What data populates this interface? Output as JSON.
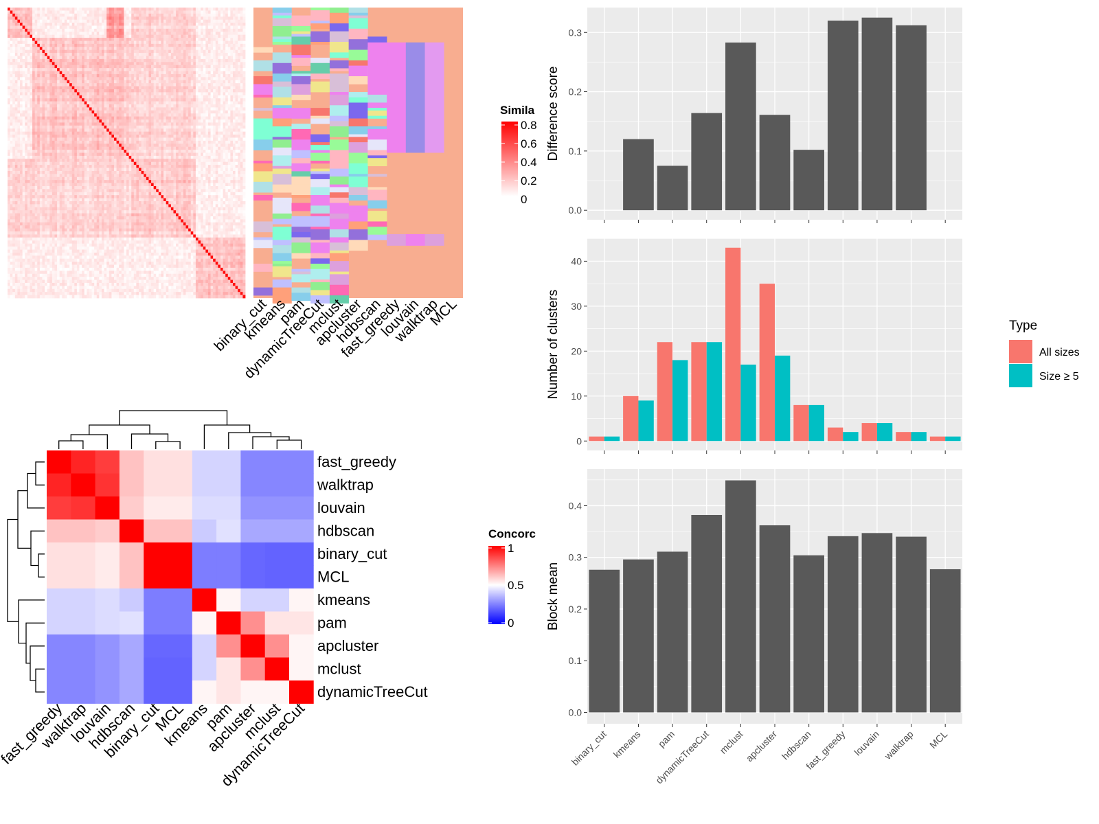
{
  "colors": {
    "panel_bg": "#ebebeb",
    "grid": "#ffffff",
    "bar_dark": "#595959",
    "all_sizes": "#f8766d",
    "size_ge5": "#00bfc4",
    "sim_high": "#ff0000",
    "conc_low": "#0000ff",
    "membership_bg": "#f8ad90"
  },
  "similarity_legend": {
    "title": "Simila",
    "ticks": [
      "0.8",
      "0.6",
      "0.4",
      "0.2",
      "0"
    ]
  },
  "concordance_legend": {
    "title": "Concorc",
    "ticks": [
      "1",
      "0.5",
      "0"
    ]
  },
  "membership_labels": [
    "binary_cut",
    "kmeans",
    "pam",
    "dynamicTreeCut",
    "mclust",
    "apcluster",
    "hdbscan",
    "fast_greedy",
    "louvain",
    "walktrap",
    "MCL"
  ],
  "concordance_order": [
    "fast_greedy",
    "walktrap",
    "louvain",
    "hdbscan",
    "binary_cut",
    "MCL",
    "kmeans",
    "pam",
    "apcluster",
    "mclust",
    "dynamicTreeCut"
  ],
  "chart_data": [
    {
      "type": "heatmap",
      "title": "",
      "legend_title": "Simila",
      "value_range": [
        0,
        0.85
      ],
      "description_values": "similarity matrix, diagonal blocks"
    },
    {
      "type": "heatmap",
      "title": "",
      "legend_title": "Concorc",
      "rows": [
        "fast_greedy",
        "walktrap",
        "louvain",
        "hdbscan",
        "binary_cut",
        "MCL",
        "kmeans",
        "pam",
        "apcluster",
        "mclust",
        "dynamicTreeCut"
      ],
      "columns": [
        "fast_greedy",
        "walktrap",
        "louvain",
        "hdbscan",
        "binary_cut",
        "MCL",
        "kmeans",
        "pam",
        "apcluster",
        "mclust",
        "dynamicTreeCut"
      ],
      "values": [
        [
          1.0,
          0.93,
          0.88,
          0.62,
          0.56,
          0.56,
          0.4,
          0.4,
          0.22,
          0.22,
          0.22
        ],
        [
          0.93,
          1.0,
          0.9,
          0.62,
          0.56,
          0.56,
          0.4,
          0.4,
          0.22,
          0.22,
          0.22
        ],
        [
          0.88,
          0.9,
          1.0,
          0.6,
          0.54,
          0.54,
          0.42,
          0.42,
          0.25,
          0.25,
          0.25
        ],
        [
          0.62,
          0.62,
          0.6,
          1.0,
          0.62,
          0.62,
          0.38,
          0.43,
          0.3,
          0.3,
          0.3
        ],
        [
          0.56,
          0.56,
          0.54,
          0.62,
          1.0,
          1.0,
          0.2,
          0.2,
          0.15,
          0.14,
          0.14
        ],
        [
          0.56,
          0.56,
          0.54,
          0.62,
          1.0,
          1.0,
          0.2,
          0.2,
          0.15,
          0.14,
          0.14
        ],
        [
          0.4,
          0.4,
          0.42,
          0.38,
          0.2,
          0.2,
          1.0,
          0.52,
          0.4,
          0.4,
          0.52
        ],
        [
          0.4,
          0.4,
          0.42,
          0.43,
          0.2,
          0.2,
          0.52,
          1.0,
          0.72,
          0.55,
          0.55
        ],
        [
          0.22,
          0.22,
          0.25,
          0.3,
          0.15,
          0.15,
          0.4,
          0.72,
          1.0,
          0.72,
          0.52
        ],
        [
          0.22,
          0.22,
          0.25,
          0.3,
          0.14,
          0.14,
          0.4,
          0.55,
          0.72,
          1.0,
          0.52
        ],
        [
          0.22,
          0.22,
          0.25,
          0.3,
          0.14,
          0.14,
          0.52,
          0.55,
          0.52,
          0.52,
          1.0
        ]
      ],
      "value_range": [
        0,
        1
      ]
    },
    {
      "type": "bar",
      "title": "",
      "xlabel": "",
      "ylabel": "Difference score",
      "categories": [
        "binary_cut",
        "kmeans",
        "pam",
        "dynamicTreeCut",
        "mclust",
        "apcluster",
        "hdbscan",
        "fast_greedy",
        "louvain",
        "walktrap",
        "MCL"
      ],
      "values": [
        0.0,
        0.12,
        0.075,
        0.164,
        0.283,
        0.161,
        0.102,
        0.32,
        0.325,
        0.312,
        0.0
      ],
      "ylim": [
        -0.016,
        0.342
      ],
      "yticks": [
        "0.0",
        "0.1",
        "0.2",
        "0.3"
      ]
    },
    {
      "type": "bar",
      "title": "",
      "xlabel": "",
      "ylabel": "Number of clusters",
      "legend_title": "Type",
      "legend_position": "right",
      "categories": [
        "binary_cut",
        "kmeans",
        "pam",
        "dynamicTreeCut",
        "mclust",
        "apcluster",
        "hdbscan",
        "fast_greedy",
        "louvain",
        "walktrap",
        "MCL"
      ],
      "series": [
        {
          "name": "All sizes",
          "values": [
            1,
            10,
            22,
            22,
            43,
            35,
            8,
            3,
            4,
            2,
            1
          ]
        },
        {
          "name": "Size ≥ 5",
          "values": [
            1,
            9,
            18,
            22,
            17,
            19,
            8,
            2,
            4,
            2,
            1
          ]
        }
      ],
      "ylim": [
        -2.1,
        45.1
      ],
      "yticks": [
        "0",
        "10",
        "20",
        "30",
        "40"
      ]
    },
    {
      "type": "bar",
      "title": "",
      "xlabel": "",
      "ylabel": "Block mean",
      "categories": [
        "binary_cut",
        "kmeans",
        "pam",
        "dynamicTreeCut",
        "mclust",
        "apcluster",
        "hdbscan",
        "fast_greedy",
        "louvain",
        "walktrap",
        "MCL"
      ],
      "values": [
        0.276,
        0.296,
        0.311,
        0.382,
        0.449,
        0.362,
        0.304,
        0.341,
        0.347,
        0.34,
        0.277
      ],
      "ylim": [
        -0.022,
        0.471
      ],
      "yticks": [
        "0.0",
        "0.1",
        "0.2",
        "0.3",
        "0.4"
      ]
    }
  ]
}
